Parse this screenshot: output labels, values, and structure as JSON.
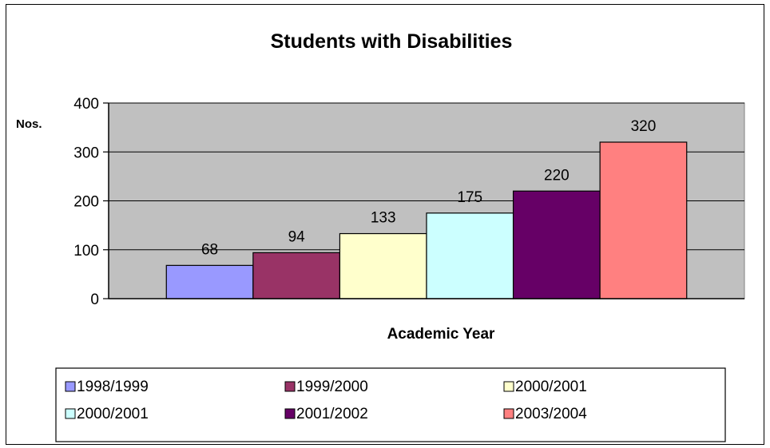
{
  "chart_data": {
    "type": "bar",
    "title": "Students with Disabilities",
    "xlabel": "Academic Year",
    "ylabel": "Nos.",
    "ylim": [
      0,
      400
    ],
    "yticks": [
      "0",
      "100",
      "200",
      "300",
      "400"
    ],
    "grid": true,
    "legend_position": "bottom",
    "plot_background": "#c0c0c0",
    "series": [
      {
        "name": "1998/1999",
        "values": [
          68
        ],
        "color": "#9999ff"
      },
      {
        "name": "1999/2000",
        "values": [
          94
        ],
        "color": "#993366"
      },
      {
        "name": "2000/2001",
        "values": [
          133
        ],
        "color": "#ffffcc"
      },
      {
        "name": "2000/2001",
        "values": [
          175
        ],
        "color": "#ccffff"
      },
      {
        "name": "2001/2002",
        "values": [
          220
        ],
        "color": "#660066"
      },
      {
        "name": "2003/2004",
        "values": [
          320
        ],
        "color": "#ff8080"
      }
    ]
  }
}
